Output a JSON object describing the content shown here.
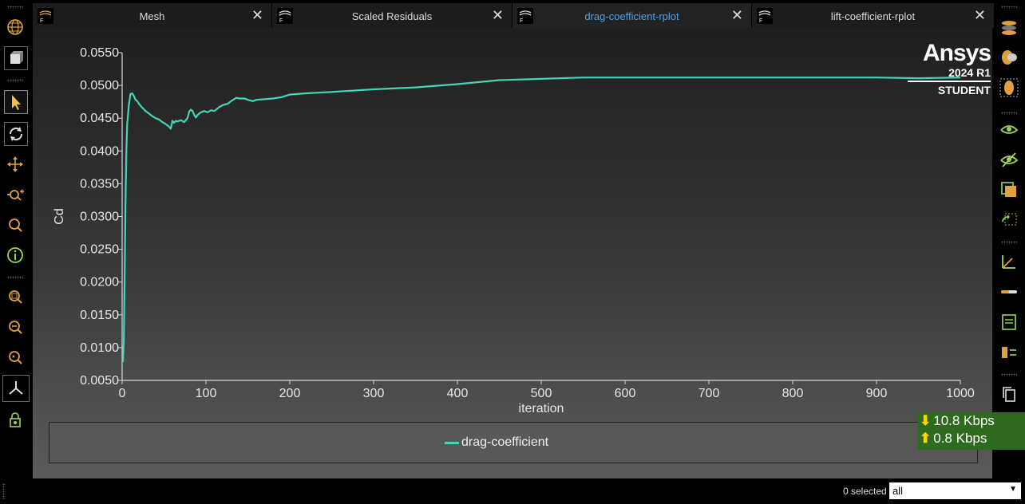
{
  "tabs": [
    {
      "label": "Mesh",
      "close": "✕"
    },
    {
      "label": "Scaled Residuals",
      "close": "✕"
    },
    {
      "label": "drag-coefficient-rplot",
      "close": "✕",
      "active": true
    },
    {
      "label": "lift-coefficient-rplot",
      "close": "✕"
    }
  ],
  "logo": {
    "brand": "Ansys",
    "version": "2024 R1",
    "edition": "STUDENT"
  },
  "chart_data": {
    "type": "line",
    "title": "",
    "xlabel": "iteration",
    "ylabel": "Cd",
    "xlim": [
      0,
      1000
    ],
    "ylim": [
      0.005,
      0.055
    ],
    "xticks": [
      0,
      100,
      200,
      300,
      400,
      500,
      600,
      700,
      800,
      900,
      1000
    ],
    "yticks": [
      "0.0050",
      "0.0100",
      "0.0150",
      "0.0200",
      "0.0250",
      "0.0300",
      "0.0350",
      "0.0400",
      "0.0450",
      "0.0500",
      "0.0550"
    ],
    "grid": false,
    "legend": "bottom-center",
    "series": [
      {
        "name": "drag-coefficient",
        "color": "#44d4b6",
        "x": [
          1,
          2,
          3,
          4,
          5,
          6,
          8,
          10,
          12,
          14,
          16,
          18,
          20,
          24,
          28,
          32,
          36,
          40,
          44,
          48,
          52,
          56,
          58,
          60,
          62,
          64,
          66,
          70,
          74,
          78,
          80,
          82,
          84,
          86,
          88,
          90,
          94,
          98,
          102,
          106,
          110,
          116,
          120,
          126,
          130,
          136,
          140,
          146,
          150,
          156,
          160,
          170,
          180,
          190,
          200,
          220,
          250,
          300,
          350,
          400,
          450,
          500,
          550,
          600,
          700,
          800,
          900,
          950,
          1000
        ],
        "y": [
          0.0078,
          0.011,
          0.021,
          0.032,
          0.04,
          0.044,
          0.047,
          0.0487,
          0.0488,
          0.0484,
          0.0478,
          0.0476,
          0.0472,
          0.0466,
          0.0461,
          0.0457,
          0.0453,
          0.045,
          0.0448,
          0.0444,
          0.0441,
          0.0437,
          0.0434,
          0.0446,
          0.0443,
          0.0446,
          0.0445,
          0.0447,
          0.0444,
          0.045,
          0.046,
          0.0463,
          0.0461,
          0.0455,
          0.0451,
          0.0455,
          0.0459,
          0.0461,
          0.0459,
          0.0462,
          0.0461,
          0.0467,
          0.047,
          0.0472,
          0.0476,
          0.0481,
          0.048,
          0.048,
          0.0478,
          0.0476,
          0.0478,
          0.0479,
          0.048,
          0.0482,
          0.0486,
          0.0488,
          0.049,
          0.0494,
          0.0497,
          0.0502,
          0.0508,
          0.051,
          0.0512,
          0.0512,
          0.0512,
          0.0512,
          0.0512,
          0.0511,
          0.0512
        ]
      }
    ]
  },
  "legend": {
    "label": "drag-coefficient"
  },
  "network": {
    "down": "10.8 Kbps",
    "up": "0.8 Kbps",
    "down_arrow": "⬇",
    "up_arrow": "⬆"
  },
  "status": {
    "selected": "0 selected",
    "filter_value": "all"
  }
}
